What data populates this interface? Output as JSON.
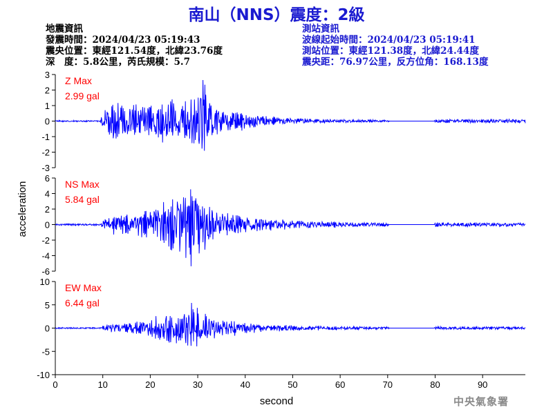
{
  "title": "南山（NNS）震度：2級",
  "earthquake_info": {
    "heading": "地震資訊",
    "origin_time": "發震時間：2024/04/23 05:19:43",
    "epicenter": "震央位置：東經121.54度，北緯23.76度",
    "depth_magnitude": "深　度：5.8公里，芮氏規模：5.7"
  },
  "station_info": {
    "heading": "測站資訊",
    "wave_start": "波線起始時間：2024/04/23 05:19:41",
    "location": "測站位置：東經121.38度，北緯24.44度",
    "distance": "震央距：76.97公里，反方位角：168.13度"
  },
  "watermark": "中央氣象署",
  "colors": {
    "trace": "#0000ff",
    "label": "#ff0000",
    "title": "#1a1ad0",
    "axis": "#000000"
  },
  "chart_data": {
    "type": "line",
    "xlabel": "second",
    "ylabel": "acceleration",
    "xlim": [
      0,
      99
    ],
    "x_ticks": [
      0,
      10,
      20,
      30,
      40,
      50,
      60,
      70,
      80,
      90
    ],
    "sample_rate_hz": 10,
    "panels": [
      {
        "component": "Z",
        "label": "Z Max",
        "max_text": "2.99 gal",
        "ylim": [
          -3,
          3
        ],
        "y_ticks": [
          -3,
          -2,
          -1,
          0,
          1,
          2,
          3
        ],
        "envelope": [
          [
            0,
            0.05
          ],
          [
            9.5,
            0.05
          ],
          [
            10,
            0.6
          ],
          [
            11,
            0.9
          ],
          [
            12,
            1.4
          ],
          [
            14,
            1.2
          ],
          [
            16,
            1.0
          ],
          [
            18,
            1.2
          ],
          [
            20,
            1.0
          ],
          [
            22,
            1.3
          ],
          [
            24,
            1.6
          ],
          [
            26,
            1.4
          ],
          [
            28,
            1.8
          ],
          [
            30,
            2.1
          ],
          [
            31,
            2.99
          ],
          [
            32,
            1.6
          ],
          [
            34,
            1.0
          ],
          [
            36,
            0.8
          ],
          [
            40,
            0.55
          ],
          [
            45,
            0.3
          ],
          [
            50,
            0.2
          ],
          [
            60,
            0.1
          ],
          [
            70,
            0.08
          ],
          [
            70.5,
            0.0
          ],
          [
            79.8,
            0.0
          ],
          [
            80,
            0.12
          ],
          [
            90,
            0.12
          ],
          [
            95,
            0.15
          ],
          [
            99,
            0.15
          ]
        ]
      },
      {
        "component": "NS",
        "label": "NS Max",
        "max_text": "5.84 gal",
        "ylim": [
          -6,
          6
        ],
        "y_ticks": [
          -6,
          -4,
          -2,
          0,
          2,
          4,
          6
        ],
        "envelope": [
          [
            0,
            0.12
          ],
          [
            9.5,
            0.12
          ],
          [
            10,
            0.6
          ],
          [
            11,
            1.0
          ],
          [
            12,
            1.4
          ],
          [
            15,
            1.2
          ],
          [
            18,
            1.6
          ],
          [
            20,
            2.2
          ],
          [
            22,
            2.8
          ],
          [
            24,
            3.4
          ],
          [
            26,
            4.0
          ],
          [
            28,
            5.0
          ],
          [
            29,
            5.84
          ],
          [
            30,
            4.0
          ],
          [
            32,
            3.0
          ],
          [
            34,
            2.2
          ],
          [
            36,
            1.6
          ],
          [
            40,
            1.2
          ],
          [
            45,
            0.8
          ],
          [
            50,
            0.6
          ],
          [
            55,
            0.45
          ],
          [
            60,
            0.35
          ],
          [
            65,
            0.3
          ],
          [
            70,
            0.25
          ],
          [
            70.5,
            0.0
          ],
          [
            79.8,
            0.0
          ],
          [
            80,
            0.3
          ],
          [
            90,
            0.3
          ],
          [
            99,
            0.28
          ]
        ]
      },
      {
        "component": "EW",
        "label": "EW Max",
        "max_text": "6.44 gal",
        "ylim": [
          -10,
          10
        ],
        "y_ticks": [
          -10,
          -5,
          0,
          5,
          10
        ],
        "envelope": [
          [
            0,
            0.15
          ],
          [
            9.5,
            0.15
          ],
          [
            10,
            0.6
          ],
          [
            12,
            1.0
          ],
          [
            15,
            1.2
          ],
          [
            18,
            1.6
          ],
          [
            20,
            2.2
          ],
          [
            22,
            3.2
          ],
          [
            24,
            4.0
          ],
          [
            26,
            3.8
          ],
          [
            28,
            5.0
          ],
          [
            29,
            6.44
          ],
          [
            30,
            4.0
          ],
          [
            32,
            3.0
          ],
          [
            34,
            2.2
          ],
          [
            36,
            1.8
          ],
          [
            40,
            1.2
          ],
          [
            45,
            0.8
          ],
          [
            50,
            0.6
          ],
          [
            55,
            0.5
          ],
          [
            60,
            0.4
          ],
          [
            65,
            0.35
          ],
          [
            70,
            0.3
          ],
          [
            70.5,
            0.0
          ],
          [
            79.8,
            0.0
          ],
          [
            80,
            0.35
          ],
          [
            90,
            0.35
          ],
          [
            99,
            0.3
          ]
        ]
      }
    ]
  }
}
